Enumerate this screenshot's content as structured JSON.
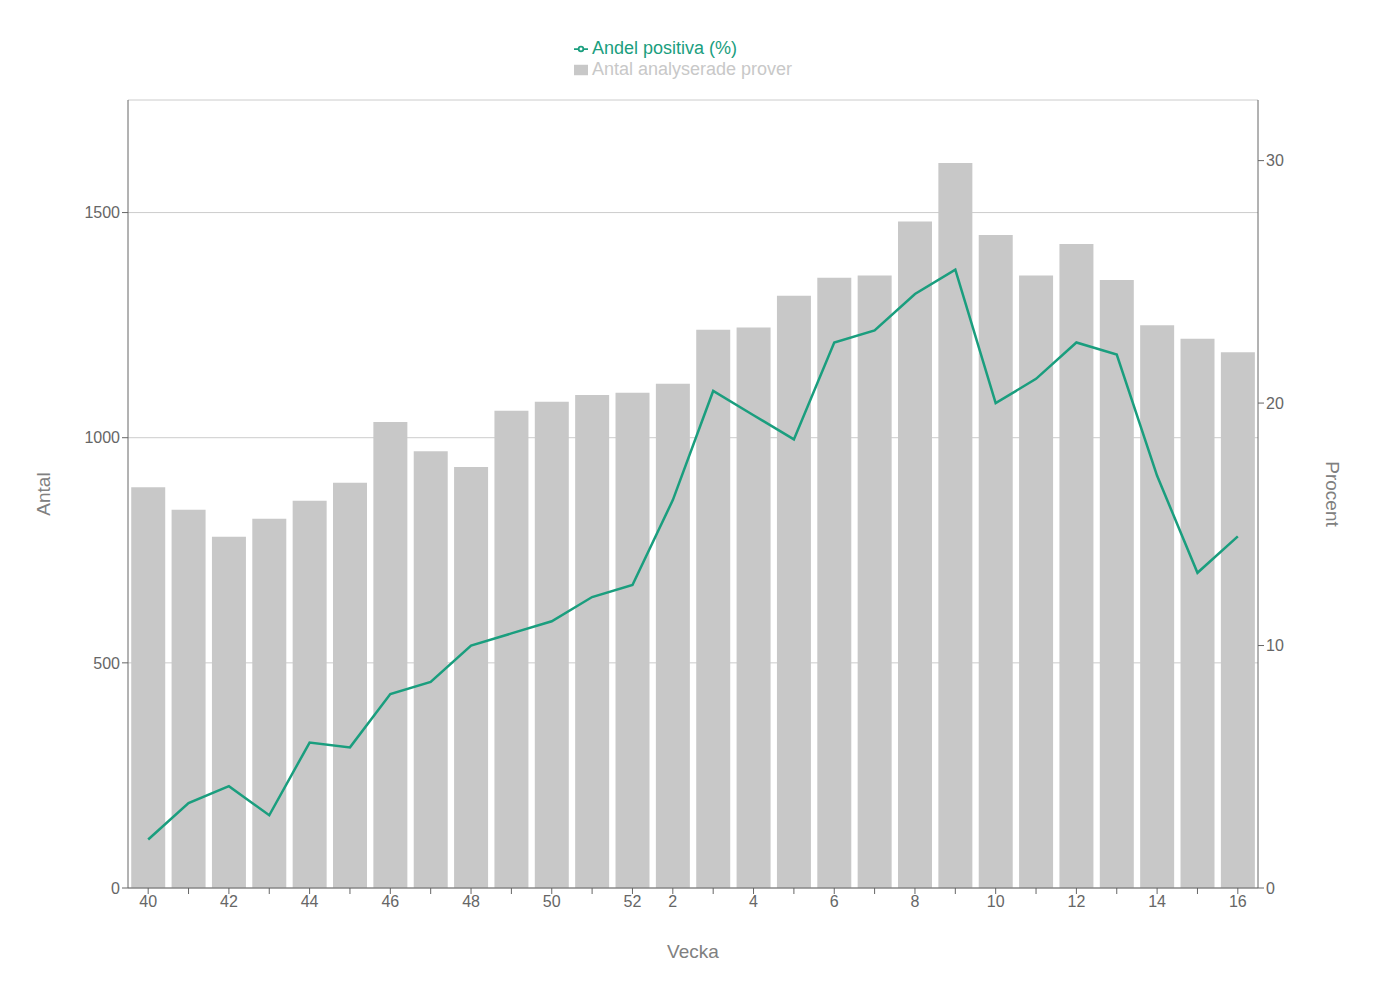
{
  "chart_data": {
    "type": "bar",
    "xlabel": "Vecka",
    "ylabel": "Antal",
    "y2label": "Procent",
    "categories": [
      "40",
      null,
      "42",
      null,
      "44",
      null,
      "46",
      null,
      "48",
      null,
      "50",
      null,
      "52",
      "2",
      null,
      "4",
      null,
      "6",
      null,
      "8",
      null,
      "10",
      null,
      "12",
      null,
      "14",
      null,
      "16"
    ],
    "series": [
      {
        "name": "Antal analyserade prover",
        "type": "bar",
        "color": "#c8c8c8",
        "values": [
          890,
          840,
          780,
          820,
          860,
          900,
          1035,
          970,
          935,
          1060,
          1080,
          1095,
          1100,
          1120,
          1240,
          1245,
          1315,
          1355,
          1360,
          1480,
          1610,
          1450,
          1360,
          1430,
          1350,
          1250,
          1220,
          1190
        ]
      },
      {
        "name": "Andel positiva (%)",
        "type": "line",
        "axis": "y2",
        "color": "#1a9e7e",
        "values": [
          2.0,
          3.5,
          4.2,
          3.0,
          6.0,
          5.8,
          8.0,
          8.5,
          10.0,
          10.5,
          11.0,
          12.0,
          12.5,
          16.0,
          20.5,
          19.5,
          18.5,
          22.5,
          23.0,
          24.5,
          25.5,
          20.0,
          21.0,
          22.5,
          22.0,
          17.0,
          13.0,
          14.5
        ]
      }
    ],
    "ylim": [
      0,
      1750
    ],
    "yticks": [
      0,
      500,
      1000,
      1500
    ],
    "y2lim": [
      0,
      32.5
    ],
    "y2ticks": [
      0,
      10,
      20,
      30
    ],
    "grid": true,
    "legend": "top"
  }
}
